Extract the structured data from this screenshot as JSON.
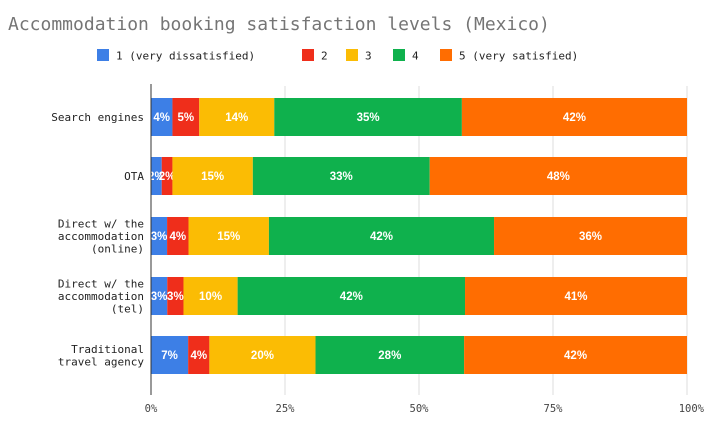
{
  "chart_data": {
    "type": "bar",
    "orientation": "horizontal",
    "stacked": "percent",
    "title": "Accommodation booking satisfaction levels (Mexico)",
    "legend_position": "top",
    "categories": [
      [
        "Search engines"
      ],
      [
        "OTA"
      ],
      [
        "Direct w/ the",
        "accommodation",
        "(online)"
      ],
      [
        "Direct w/ the",
        "accommodation",
        "(tel)"
      ],
      [
        "Traditional",
        "travel agency"
      ]
    ],
    "series": [
      {
        "name": "1 (very dissatisfied)",
        "color": "#3d7fe6",
        "values": [
          4,
          2,
          3,
          3,
          7
        ],
        "labels": [
          "4%",
          "2%",
          "3%",
          "3%",
          "7%"
        ]
      },
      {
        "name": "2",
        "color": "#ef2e1b",
        "values": [
          5,
          2,
          4,
          3,
          4
        ],
        "labels": [
          "5%",
          "2%",
          "4%",
          "3%",
          "4%"
        ]
      },
      {
        "name": "3",
        "color": "#fbbc04",
        "values": [
          14,
          15,
          15,
          10,
          20
        ],
        "labels": [
          "14%",
          "15%",
          "15%",
          "10%",
          "20%"
        ]
      },
      {
        "name": "4",
        "color": "#0fb14d",
        "values": [
          35,
          33,
          42,
          42,
          28
        ],
        "labels": [
          "35%",
          "33%",
          "42%",
          "42%",
          "28%"
        ]
      },
      {
        "name": "5 (very satisfied)",
        "color": "#ff6d01",
        "values": [
          42,
          48,
          36,
          41,
          42
        ],
        "labels": [
          "42%",
          "48%",
          "36%",
          "41%",
          "42%"
        ]
      }
    ],
    "xlim": [
      0,
      100
    ],
    "x_ticks": [
      "0%",
      "25%",
      "50%",
      "75%",
      "100%"
    ],
    "grid": true
  }
}
